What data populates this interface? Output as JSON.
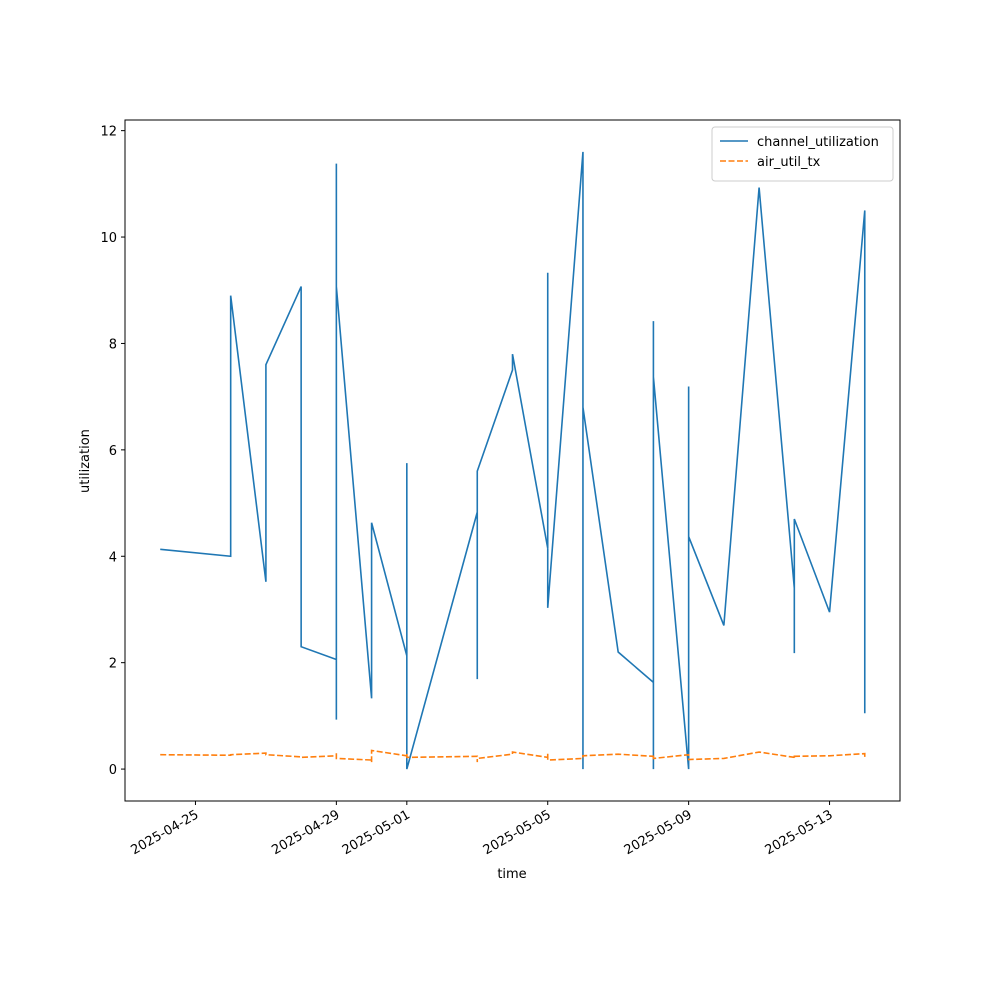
{
  "chart_data": {
    "type": "line",
    "xlabel": "time",
    "ylabel": "utilization",
    "x": [
      "2025-04-24",
      "2025-04-26",
      "2025-04-26",
      "2025-04-27",
      "2025-04-27",
      "2025-04-28",
      "2025-04-28",
      "2025-04-29",
      "2025-04-29",
      "2025-04-29",
      "2025-04-29",
      "2025-04-29",
      "2025-04-30",
      "2025-04-30",
      "2025-04-30",
      "2025-05-01",
      "2025-05-01",
      "2025-05-01",
      "2025-05-01",
      "2025-05-03",
      "2025-05-03",
      "2025-05-03",
      "2025-05-04",
      "2025-05-04",
      "2025-05-05",
      "2025-05-05",
      "2025-05-05",
      "2025-05-06",
      "2025-05-06",
      "2025-05-06",
      "2025-05-06",
      "2025-05-06",
      "2025-05-07",
      "2025-05-08",
      "2025-05-08",
      "2025-05-08",
      "2025-05-08",
      "2025-05-08",
      "2025-05-09",
      "2025-05-09",
      "2025-05-09",
      "2025-05-09",
      "2025-05-09",
      "2025-05-10",
      "2025-05-11",
      "2025-05-12",
      "2025-05-12",
      "2025-05-12",
      "2025-05-13",
      "2025-05-14",
      "2025-05-14"
    ],
    "series": [
      {
        "name": "channel_utilization",
        "color": "#1f77b4",
        "dash": "solid",
        "values": [
          4.13,
          4.0,
          8.9,
          3.52,
          7.6,
          9.07,
          2.3,
          2.06,
          5.3,
          11.38,
          0.93,
          9.07,
          1.33,
          4.63,
          4.63,
          2.13,
          1.03,
          5.75,
          0.0,
          4.83,
          1.69,
          5.6,
          7.5,
          7.8,
          4.15,
          9.33,
          3.03,
          11.6,
          1.6,
          0.0,
          2.2,
          6.8,
          2.2,
          1.63,
          0.0,
          0.0,
          8.42,
          7.37,
          0.0,
          5.7,
          7.19,
          4.35,
          4.37,
          2.7,
          10.93,
          3.4,
          2.18,
          4.7,
          2.95,
          10.5,
          1.05
        ]
      },
      {
        "name": "air_util_tx",
        "color": "#ff7f0e",
        "dash": "dashed",
        "values": [
          0.27,
          0.26,
          0.27,
          0.3,
          0.27,
          0.23,
          0.22,
          0.25,
          0.2,
          0.3,
          0.22,
          0.2,
          0.17,
          0.13,
          0.35,
          0.25,
          0.3,
          0.22,
          0.22,
          0.24,
          0.13,
          0.2,
          0.28,
          0.32,
          0.22,
          0.3,
          0.17,
          0.2,
          0.2,
          0.22,
          0.25,
          0.25,
          0.28,
          0.24,
          0.2,
          0.2,
          0.25,
          0.2,
          0.27,
          0.25,
          0.24,
          0.2,
          0.18,
          0.2,
          0.32,
          0.22,
          0.2,
          0.24,
          0.25,
          0.29,
          0.23
        ]
      }
    ],
    "xlim": [
      "2025-04-23",
      "2025-05-15"
    ],
    "xticks": [
      "2025-04-25",
      "2025-04-29",
      "2025-05-01",
      "2025-05-05",
      "2025-05-09",
      "2025-05-13"
    ],
    "ylim": [
      -0.6,
      12.2
    ],
    "yticks": [
      0,
      2,
      4,
      6,
      8,
      10,
      12
    ],
    "legend": "upper right",
    "grid": false
  }
}
